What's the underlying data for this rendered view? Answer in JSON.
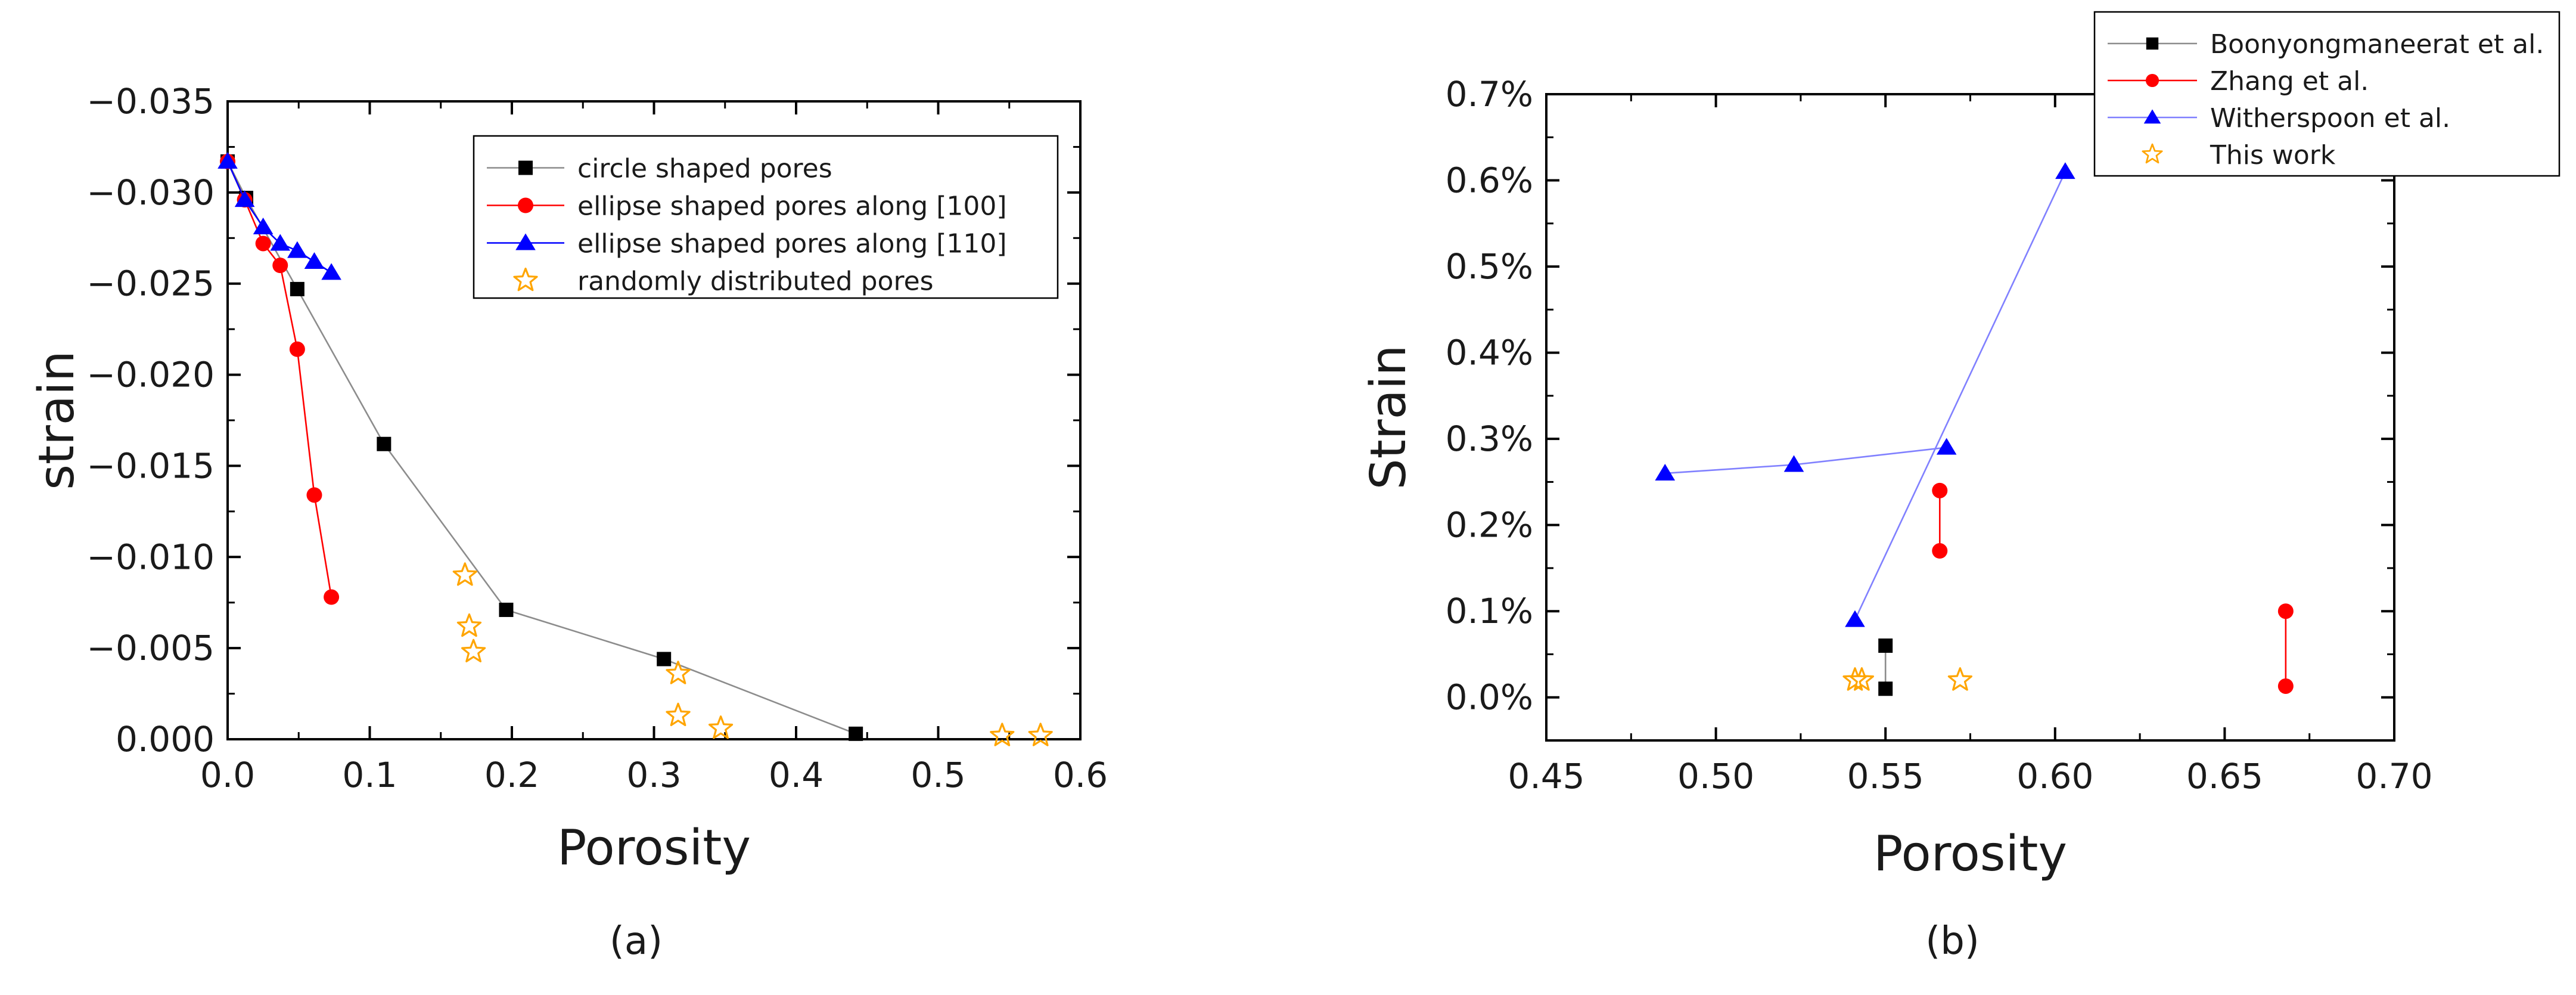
{
  "chart_data": [
    {
      "type": "scatter",
      "caption": "(a)",
      "xlabel": "Porosity",
      "ylabel": "strain",
      "xlim": [
        0.0,
        0.6
      ],
      "ylim": [
        0.0,
        -0.035
      ],
      "xticks": [
        "0.0",
        "0.1",
        "0.2",
        "0.3",
        "0.4",
        "0.5",
        "0.6"
      ],
      "yticks": [
        "0.000",
        "−0.005",
        "−0.010",
        "−0.015",
        "−0.020",
        "−0.025",
        "−0.030",
        "−0.035"
      ],
      "grid": false,
      "legend_position": "top-right",
      "series": [
        {
          "name": "circle shaped pores",
          "marker": "square",
          "color": "#000000",
          "line_color": "#8c8c8c",
          "connected": true,
          "points": [
            [
              0.0,
              -0.0317
            ],
            [
              0.013,
              -0.0297
            ],
            [
              0.049,
              -0.0247
            ],
            [
              0.11,
              -0.0162
            ],
            [
              0.196,
              -0.0071
            ],
            [
              0.307,
              -0.0044
            ],
            [
              0.442,
              -0.0003
            ]
          ]
        },
        {
          "name": "ellipse shaped pores along [100]",
          "marker": "circle",
          "color": "#ff0000",
          "line_color": "#ff0000",
          "connected": true,
          "points": [
            [
              0.0,
              -0.0317
            ],
            [
              0.012,
              -0.0296
            ],
            [
              0.025,
              -0.0272
            ],
            [
              0.037,
              -0.026
            ],
            [
              0.049,
              -0.0214
            ],
            [
              0.061,
              -0.0134
            ],
            [
              0.073,
              -0.0078
            ]
          ]
        },
        {
          "name": "ellipse shaped pores along [110]",
          "marker": "triangle",
          "color": "#0000ff",
          "line_color": "#0000ff",
          "connected": true,
          "points": [
            [
              0.0,
              -0.0317
            ],
            [
              0.012,
              -0.0296
            ],
            [
              0.025,
              -0.0281
            ],
            [
              0.037,
              -0.0272
            ],
            [
              0.049,
              -0.0268
            ],
            [
              0.061,
              -0.0262
            ],
            [
              0.073,
              -0.0256
            ]
          ]
        },
        {
          "name": "randomly distributed pores",
          "marker": "star",
          "color": "#ffa500",
          "connected": false,
          "points": [
            [
              0.167,
              -0.009
            ],
            [
              0.17,
              -0.0062
            ],
            [
              0.173,
              -0.0048
            ],
            [
              0.317,
              -0.0036
            ],
            [
              0.317,
              -0.0013
            ],
            [
              0.347,
              -0.0006
            ],
            [
              0.545,
              -0.0002
            ],
            [
              0.572,
              -0.0002
            ]
          ]
        }
      ]
    },
    {
      "type": "scatter",
      "caption": "(b)",
      "xlabel": "Porosity",
      "ylabel": "Strain",
      "xlim": [
        0.45,
        0.7
      ],
      "ylim": [
        -0.05,
        0.7
      ],
      "xticks": [
        "0.45",
        "0.50",
        "0.55",
        "0.60",
        "0.65",
        "0.70"
      ],
      "yticks": [
        "0.0%",
        "0.1%",
        "0.2%",
        "0.3%",
        "0.4%",
        "0.5%",
        "0.6%",
        "0.7%"
      ],
      "grid": false,
      "legend_position": "top-right",
      "series": [
        {
          "name": "Boonyongmaneerat et al.",
          "marker": "square",
          "color": "#000000",
          "line_color": "#8c8c8c",
          "segments": [
            [
              [
                0.55,
                0.06
              ],
              [
                0.55,
                0.01
              ]
            ]
          ]
        },
        {
          "name": "Zhang et al.",
          "marker": "circle",
          "color": "#ff0000",
          "line_color": "#ff0000",
          "segments": [
            [
              [
                0.566,
                0.24
              ],
              [
                0.566,
                0.17
              ]
            ],
            [
              [
                0.668,
                0.1
              ],
              [
                0.668,
                0.013
              ]
            ]
          ]
        },
        {
          "name": "Witherspoon et al.",
          "marker": "triangle",
          "color": "#0000ff",
          "line_color": "#8080ff",
          "segments": [
            [
              [
                0.485,
                0.26
              ],
              [
                0.523,
                0.27
              ],
              [
                0.568,
                0.29
              ]
            ],
            [
              [
                0.541,
                0.09
              ],
              [
                0.603,
                0.61
              ]
            ]
          ]
        },
        {
          "name": "This work",
          "marker": "star",
          "color": "#ffa500",
          "segments": [
            [
              [
                0.541,
                0.02
              ]
            ],
            [
              [
                0.543,
                0.02
              ]
            ],
            [
              [
                0.572,
                0.02
              ]
            ]
          ]
        }
      ]
    }
  ]
}
